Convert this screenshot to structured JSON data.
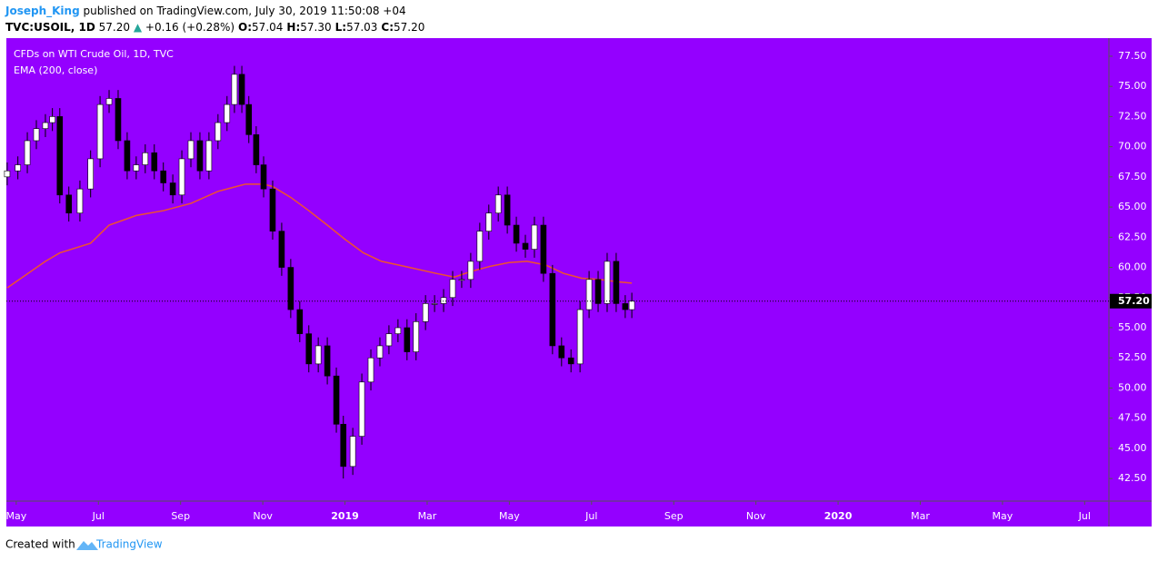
{
  "header": {
    "author": "Joseph_King",
    "published": "published on TradingView.com, July 30, 2019 11:50:08 +04",
    "symbol": "TVC:USOIL, 1D",
    "last": "57.20",
    "arrow": "▲",
    "change": "+0.16 (+0.28%)",
    "ohlc": [
      {
        "label": "O:",
        "value": "57.04"
      },
      {
        "label": "H:",
        "value": "57.30"
      },
      {
        "label": "L:",
        "value": "57.03"
      },
      {
        "label": "C:",
        "value": "57.20"
      }
    ]
  },
  "footer": {
    "created": "Created with",
    "brand": "TradingView"
  },
  "chart_data": {
    "type": "candlestick",
    "title": "CFDs on WTI Crude Oil, 1D, TVC",
    "background": "#9400ff",
    "up_color": "#ffffff",
    "down_color": "#000000",
    "x": [
      -0.22,
      0.04,
      0.27,
      0.49,
      0.71,
      0.88,
      1.06,
      1.28,
      1.55,
      1.81,
      2.04,
      2.26,
      2.48,
      2.7,
      2.92,
      3.14,
      3.36,
      3.58,
      3.81,
      4.03,
      4.25,
      4.47,
      4.69,
      4.91,
      5.13,
      5.31,
      5.49,
      5.66,
      5.84,
      6.02,
      6.24,
      6.46,
      6.68,
      6.9,
      7.12,
      7.35,
      7.57,
      7.79,
      7.96,
      8.19,
      8.41,
      8.63,
      8.85,
      9.07,
      9.29,
      9.51,
      9.73,
      9.96,
      10.18,
      10.4,
      10.62,
      10.84,
      11.06,
      11.28,
      11.5,
      11.73,
      11.95,
      12.17,
      12.39,
      12.61,
      12.83,
      13.05,
      13.27,
      13.5,
      13.72,
      13.94,
      14.16,
      14.38,
      14.6,
      14.82,
      14.98
    ],
    "open": [
      67.5,
      68,
      68.5,
      70.5,
      71.5,
      72,
      72.5,
      66,
      64.5,
      66.5,
      69,
      73.5,
      74,
      70.5,
      68,
      68.5,
      69.5,
      68,
      67,
      66,
      69,
      70.5,
      68,
      70.5,
      72,
      73.5,
      76,
      73.5,
      71,
      68.5,
      66.5,
      63,
      60,
      56.5,
      54.5,
      52,
      53.5,
      51,
      47,
      43.5,
      46,
      50.5,
      52.5,
      53.5,
      54.5,
      55,
      53,
      55.5,
      57,
      57,
      57.5,
      59,
      59,
      60.5,
      63,
      64.5,
      66,
      63.5,
      62,
      61.5,
      63.5,
      59.5,
      53.5,
      52.5,
      52,
      56.5,
      59,
      57,
      60.5,
      57,
      56.5
    ],
    "high": [
      68.7,
      69.2,
      71.2,
      72.2,
      72.7,
      73.2,
      73.2,
      66.7,
      67.2,
      69.7,
      74.2,
      74.7,
      74.7,
      71.2,
      69.2,
      70.2,
      70.2,
      68.7,
      67.7,
      69.7,
      71.2,
      71.2,
      71.2,
      72.7,
      74.2,
      76.7,
      76.7,
      74.2,
      71.7,
      69.2,
      67.2,
      63.7,
      60.7,
      57.2,
      55.2,
      54.2,
      54.2,
      51.7,
      47.7,
      46.7,
      51.2,
      53.2,
      54.2,
      55.2,
      55.7,
      55.7,
      56.2,
      57.7,
      57.7,
      58.2,
      59.7,
      59.7,
      61.2,
      63.7,
      65.2,
      66.7,
      66.7,
      64.2,
      62.7,
      64.2,
      64.2,
      60.2,
      54.2,
      53.2,
      57.2,
      59.7,
      59.7,
      61.2,
      61.2,
      57.7,
      57.9
    ],
    "low": [
      66.8,
      67.3,
      67.8,
      69.8,
      70.8,
      71.3,
      65.3,
      63.8,
      63.8,
      65.8,
      68.3,
      72.8,
      69.8,
      67.3,
      67.3,
      67.8,
      67.3,
      66.3,
      65.3,
      65.3,
      68.3,
      67.3,
      67.3,
      69.8,
      71.3,
      72.8,
      72.8,
      70.3,
      67.8,
      65.8,
      62.3,
      59.3,
      55.8,
      53.8,
      51.3,
      51.3,
      50.3,
      46.3,
      42.5,
      42.8,
      45.3,
      49.8,
      51.8,
      52.8,
      53.8,
      52.3,
      52.3,
      54.8,
      56.3,
      56.3,
      56.8,
      58.3,
      58.3,
      59.8,
      62.3,
      63.8,
      62.8,
      61.3,
      60.8,
      60.8,
      58.8,
      52.8,
      51.8,
      51.3,
      51.3,
      55.8,
      56.3,
      56.3,
      56.3,
      55.8,
      55.8
    ],
    "close": [
      68,
      68.5,
      70.5,
      71.5,
      72,
      72.5,
      66,
      64.5,
      66.5,
      69,
      73.5,
      74,
      70.5,
      68,
      68.5,
      69.5,
      68,
      67,
      66,
      69,
      70.5,
      68,
      70.5,
      72,
      73.5,
      76,
      73.5,
      71,
      68.5,
      66.5,
      63,
      60,
      56.5,
      54.5,
      52,
      53.5,
      51,
      47,
      43.5,
      46,
      50.5,
      52.5,
      53.5,
      54.5,
      55,
      53,
      55.5,
      57,
      57,
      57.5,
      59,
      59,
      60.5,
      63,
      64.5,
      66,
      63.5,
      62,
      61.5,
      63.5,
      59.5,
      53.5,
      52.5,
      52,
      56.5,
      59,
      57,
      60.5,
      57,
      56.5,
      57.2
    ],
    "series": [
      {
        "name": "EMA (200, close)",
        "color": "#f0522d",
        "x": [
          -0.22,
          0.71,
          1.06,
          1.81,
          2.26,
          2.92,
          3.58,
          4.25,
          4.91,
          5.58,
          6.02,
          6.24,
          6.68,
          7.12,
          7.57,
          8.01,
          8.45,
          8.89,
          9.56,
          10.22,
          10.66,
          11.11,
          11.55,
          11.99,
          12.43,
          12.88,
          13.32,
          13.76,
          14.2,
          14.65,
          14.98
        ],
        "values": [
          58.3,
          60.5,
          61.2,
          62,
          63.5,
          64.3,
          64.7,
          65.3,
          66.3,
          66.9,
          66.9,
          66.7,
          65.8,
          64.7,
          63.5,
          62.3,
          61.2,
          60.5,
          60,
          59.5,
          59.2,
          59.7,
          60.1,
          60.4,
          60.5,
          60.2,
          59.5,
          59.1,
          59,
          58.8,
          58.7
        ]
      }
    ],
    "last_price": {
      "value": 57.2,
      "label": "57.20"
    },
    "xlim": [
      -0.24,
      26.59
    ],
    "xticks": [
      {
        "value": 0,
        "label": "May"
      },
      {
        "value": 2,
        "label": "Jul"
      },
      {
        "value": 4,
        "label": "Sep"
      },
      {
        "value": 6,
        "label": "Nov"
      },
      {
        "value": 8,
        "label": "2019"
      },
      {
        "value": 10,
        "label": "Mar"
      },
      {
        "value": 12,
        "label": "May"
      },
      {
        "value": 14,
        "label": "Jul"
      },
      {
        "value": 16,
        "label": "Sep"
      },
      {
        "value": 18,
        "label": "Nov"
      },
      {
        "value": 20,
        "label": "2020"
      },
      {
        "value": 22,
        "label": "Mar"
      },
      {
        "value": 24,
        "label": "May"
      },
      {
        "value": 26,
        "label": "Jul"
      }
    ],
    "ylim": [
      40.63,
      79.0
    ],
    "yticks": [
      {
        "value": 42.5,
        "label": "42.50"
      },
      {
        "value": 45,
        "label": "45.00"
      },
      {
        "value": 47.5,
        "label": "47.50"
      },
      {
        "value": 50,
        "label": "50.00"
      },
      {
        "value": 52.5,
        "label": "52.50"
      },
      {
        "value": 55,
        "label": "55.00"
      },
      {
        "value": 57.5,
        "label": "57.50"
      },
      {
        "value": 60,
        "label": "60.00"
      },
      {
        "value": 62.5,
        "label": "62.50"
      },
      {
        "value": 65,
        "label": "65.00"
      },
      {
        "value": 67.5,
        "label": "67.50"
      },
      {
        "value": 70,
        "label": "70.00"
      },
      {
        "value": 72.5,
        "label": "72.50"
      },
      {
        "value": 75,
        "label": "75.00"
      },
      {
        "value": 77.5,
        "label": "77.50"
      }
    ]
  }
}
